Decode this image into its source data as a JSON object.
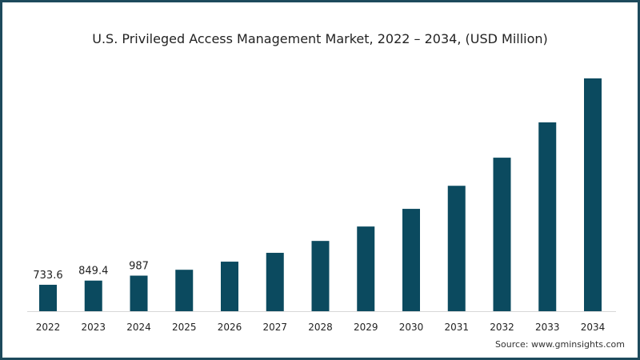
{
  "chart_data": {
    "type": "bar",
    "title": "U.S. Privileged Access Management Market, 2022 – 2034, (USD Million)",
    "xlabel": "",
    "ylabel": "",
    "categories": [
      "2022",
      "2023",
      "2024",
      "2025",
      "2026",
      "2027",
      "2028",
      "2029",
      "2030",
      "2031",
      "2032",
      "2033",
      "2034"
    ],
    "values": [
      733.6,
      849.4,
      987,
      1150,
      1375,
      1620,
      1950,
      2350,
      2840,
      3480,
      4260,
      5240,
      6460
    ],
    "data_labels": {
      "2022": "733.6",
      "2023": "849.4",
      "2024": "987"
    },
    "ylim": [
      0,
      7000
    ],
    "grid": false,
    "bar_color": "#0b4a5f",
    "source": "Source: www.gminsights.com"
  }
}
